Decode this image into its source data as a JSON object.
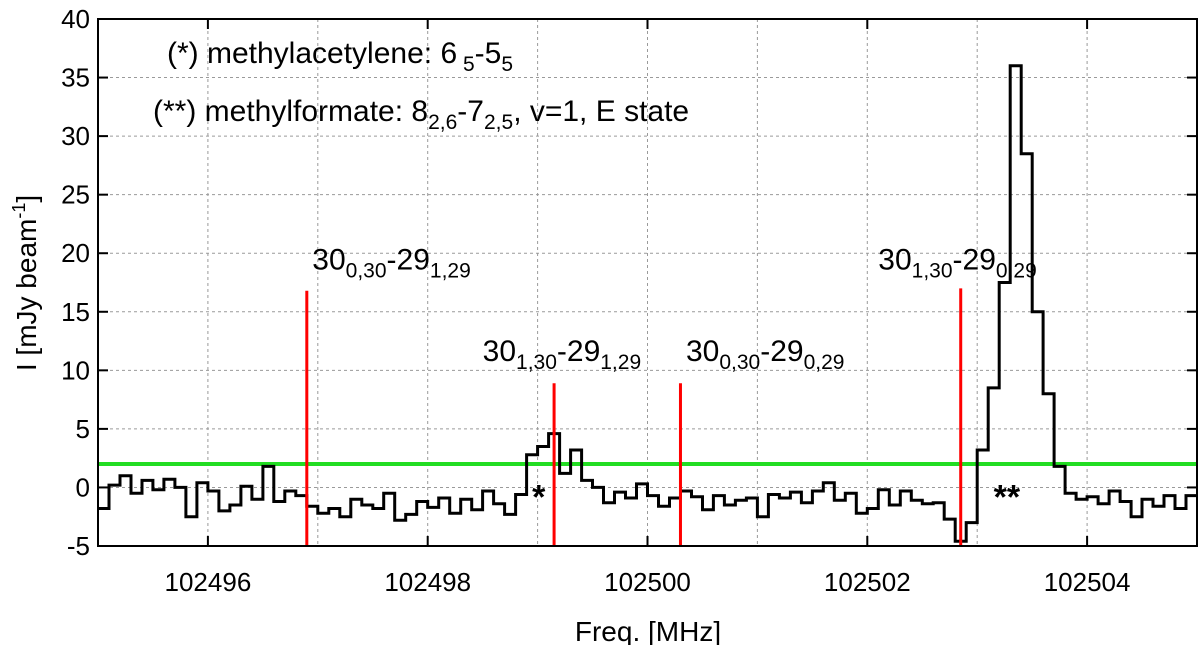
{
  "chart_data": {
    "type": "line",
    "xlabel": "Freq. [MHz]",
    "ylabel": "I [mJy beam",
    "ylabel_sup": "-1",
    "ylabel_close": "]",
    "xlim": [
      102495,
      102505
    ],
    "ylim": [
      -5,
      40
    ],
    "xticks": [
      102496,
      102498,
      102500,
      102502,
      102504
    ],
    "xtick_labels": [
      "102496",
      "102498",
      "102500",
      "102502",
      "102504"
    ],
    "yticks": [
      -5,
      0,
      5,
      10,
      15,
      20,
      25,
      30,
      35,
      40
    ],
    "ytick_labels": [
      "-5",
      "0",
      "5",
      "10",
      "15",
      "20",
      "25",
      "30",
      "35",
      "40"
    ],
    "grid": true,
    "colors": {
      "spectrum": "#000000",
      "transitions": "#ff0000",
      "threshold": "#22dd22"
    },
    "threshold": 2,
    "spectrum": {
      "x": [
        102495.0,
        102495.1,
        102495.2,
        102495.3,
        102495.4,
        102495.5,
        102495.6,
        102495.7,
        102495.8,
        102495.9,
        102496.0,
        102496.1,
        102496.2,
        102496.3,
        102496.4,
        102496.5,
        102496.6,
        102496.7,
        102496.8,
        102496.9,
        102497.0,
        102497.1,
        102497.2,
        102497.3,
        102497.4,
        102497.5,
        102497.6,
        102497.7,
        102497.8,
        102497.9,
        102498.0,
        102498.1,
        102498.2,
        102498.3,
        102498.4,
        102498.5,
        102498.6,
        102498.7,
        102498.8,
        102498.9,
        102499.0,
        102499.1,
        102499.2,
        102499.3,
        102499.4,
        102499.5,
        102499.6,
        102499.7,
        102499.8,
        102499.9,
        102500.0,
        102500.1,
        102500.2,
        102500.3,
        102500.4,
        102500.5,
        102500.6,
        102500.7,
        102500.8,
        102500.9,
        102501.0,
        102501.1,
        102501.2,
        102501.3,
        102501.4,
        102501.5,
        102501.6,
        102501.7,
        102501.8,
        102501.9,
        102502.0,
        102502.1,
        102502.2,
        102502.3,
        102502.4,
        102502.5,
        102502.6,
        102502.7,
        102502.8,
        102502.9,
        102503.0,
        102503.1,
        102503.2,
        102503.3,
        102503.4,
        102503.5,
        102503.6,
        102503.7,
        102503.8,
        102503.9,
        102504.0,
        102504.1,
        102504.2,
        102504.3,
        102504.4,
        102504.5,
        102504.6,
        102504.7,
        102504.8,
        102504.9
      ],
      "y": [
        -1.8,
        0.2,
        1.0,
        -0.5,
        0.6,
        -0.2,
        0.7,
        0.0,
        -2.5,
        0.4,
        -0.3,
        -2.0,
        -1.5,
        0.1,
        -1.0,
        1.8,
        -1.2,
        -0.3,
        -0.7,
        -1.6,
        -2.2,
        -1.8,
        -2.5,
        -1.0,
        -1.5,
        -1.8,
        -0.5,
        -2.8,
        -2.3,
        -1.2,
        -1.7,
        -0.9,
        -2.2,
        -1.0,
        -1.9,
        -0.3,
        -1.4,
        -2.3,
        -0.6,
        2.8,
        3.5,
        4.6,
        1.2,
        3.2,
        0.6,
        0.0,
        -1.3,
        -0.4,
        -0.9,
        0.3,
        -0.7,
        -1.6,
        -0.9,
        -0.3,
        -0.8,
        -1.9,
        -0.7,
        -1.5,
        -1.1,
        -0.9,
        -2.5,
        -0.6,
        -0.9,
        -0.4,
        -1.3,
        -0.3,
        0.4,
        -1.1,
        -0.5,
        -2.2,
        -1.8,
        -0.2,
        -1.5,
        -0.3,
        -1.1,
        -1.4,
        -1.3,
        -2.7,
        -4.6,
        -3.0,
        3.2,
        8.5,
        17.5,
        36.0,
        28.5,
        15.0,
        8.0,
        1.8,
        -0.5,
        -1.0,
        -0.8,
        -1.4,
        -0.3,
        -1.2,
        -2.5,
        -1.0,
        -1.6,
        -0.7,
        -1.8,
        -0.7
      ]
    },
    "transitions": [
      {
        "x": 102496.9,
        "top": 16.8
      },
      {
        "x": 102499.15,
        "top": 8.9
      },
      {
        "x": 102500.3,
        "top": 8.9
      },
      {
        "x": 102502.85,
        "top": 17.0
      }
    ],
    "transition_labels": [
      {
        "x": 102496.95,
        "y": 18.6,
        "main": "30",
        "sub1": "0,30",
        "mid": "-29",
        "sub2": "1,29"
      },
      {
        "x": 102498.5,
        "y": 10.8,
        "main": "30",
        "sub1": "1,30",
        "mid": "-29",
        "sub2": "1,29"
      },
      {
        "x": 102500.35,
        "y": 10.8,
        "main": "30",
        "sub1": "0,30",
        "mid": "-29",
        "sub2": "0,29"
      },
      {
        "x": 102502.1,
        "y": 18.6,
        "main": "30",
        "sub1": "1,30",
        "mid": "-29",
        "sub2": "0,29"
      }
    ],
    "markers": [
      {
        "text": "*",
        "x": 102498.95,
        "y": -1.8
      },
      {
        "text": "**",
        "x": 102503.15,
        "y": -1.8
      }
    ],
    "legend_lines": [
      {
        "prefix": "(*) methylacetylene: 6",
        "sub1": " 5",
        "mid": "-5",
        "sub2": "5",
        "tail": ""
      },
      {
        "prefix": "(**) methylformate: 8",
        "sub1": "2,6",
        "mid": "-7",
        "sub2": "2,5",
        "tail": ", v=1, E state"
      }
    ]
  }
}
